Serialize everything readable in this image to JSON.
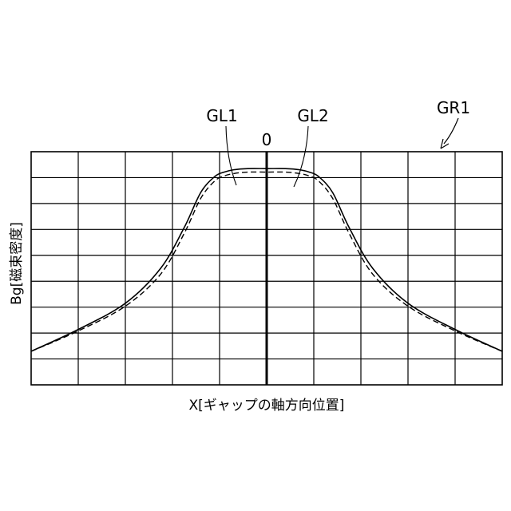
{
  "figure": {
    "ref_label": "GR1"
  },
  "chart_data": {
    "type": "line",
    "xlabel": "X[ギャップの軸方向位置]",
    "ylabel": "Bg[磁束密度]",
    "x_origin_label": "0",
    "xlim": [
      -100,
      100
    ],
    "ylim": [
      0,
      8
    ],
    "grid": true,
    "grid_columns": 10,
    "grid_rows": 9,
    "series": [
      {
        "name": "GL1",
        "line_style": "solid",
        "x": [
          -100,
          -80,
          -60,
          -45,
          -35,
          -28,
          -22,
          -18,
          -14,
          -8,
          0,
          8,
          14,
          18,
          22,
          28,
          35,
          45,
          60,
          80,
          100
        ],
        "y": [
          1.15,
          1.9,
          2.8,
          4.0,
          5.4,
          6.6,
          7.15,
          7.3,
          7.38,
          7.42,
          7.42,
          7.42,
          7.38,
          7.3,
          7.15,
          6.6,
          5.4,
          4.0,
          2.8,
          1.9,
          1.15
        ]
      },
      {
        "name": "GL2",
        "line_style": "dashed",
        "x": [
          -100,
          -80,
          -60,
          -45,
          -35,
          -28,
          -22,
          -18,
          -14,
          -8,
          0,
          8,
          14,
          18,
          22,
          28,
          35,
          45,
          60,
          80,
          100
        ],
        "y": [
          1.15,
          1.85,
          2.7,
          3.8,
          5.2,
          6.4,
          7.0,
          7.17,
          7.25,
          7.3,
          7.3,
          7.3,
          7.25,
          7.17,
          7.0,
          6.4,
          5.2,
          3.8,
          2.7,
          1.85,
          1.15
        ]
      }
    ]
  }
}
